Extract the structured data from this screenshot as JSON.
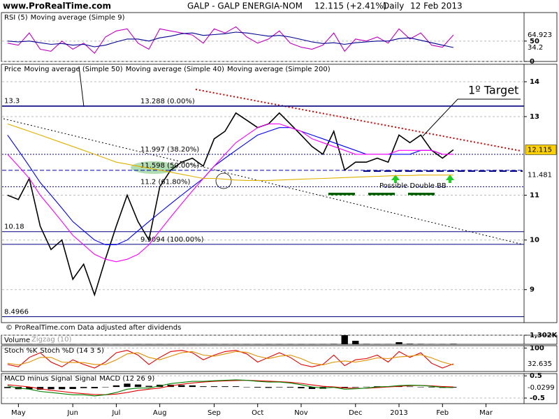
{
  "header": {
    "site": "www.ProRealTime.com",
    "ticker": "GALP - GALP ENERGIA-NOM",
    "last": "12.115 (+2.41%)",
    "period": "Daily",
    "date": "12 Feb 2013"
  },
  "chart_data": [
    {
      "type": "line",
      "ylim": [
        0,
        120
      ],
      "yticks": [
        0,
        50
      ],
      "series": [
        {
          "name": "RSI (5)",
          "color": "#c000c0",
          "values": [
            45,
            40,
            70,
            30,
            25,
            50,
            30,
            45,
            20,
            60,
            75,
            80,
            45,
            30,
            80,
            75,
            70,
            65,
            45,
            80,
            70,
            85,
            60,
            45,
            55,
            75,
            45,
            35,
            30,
            40,
            70,
            25,
            55,
            50,
            60,
            45,
            80,
            55,
            70,
            40,
            35,
            64.923,
            null,
            null,
            null,
            null,
            null,
            null
          ],
          "label_last": true
        },
        {
          "name": "Moving average (Simple 9)",
          "color": "#000090",
          "values": [
            50,
            48,
            50,
            46,
            42,
            44,
            40,
            42,
            36,
            40,
            48,
            55,
            55,
            50,
            58,
            62,
            68,
            70,
            64,
            66,
            68,
            72,
            70,
            66,
            62,
            64,
            60,
            54,
            48,
            44,
            46,
            42,
            46,
            48,
            50,
            50,
            56,
            58,
            52,
            46,
            40,
            34.2,
            null,
            null,
            null,
            null,
            null,
            null
          ],
          "label_last": true
        }
      ]
    },
    {
      "type": "line",
      "log": true,
      "ylim": [
        8.39,
        14.53
      ],
      "yticks": [
        9,
        10,
        11,
        13,
        14
      ],
      "series": [
        {
          "name": "Price",
          "color": "#000000",
          "values": [
            11.0,
            10.9,
            11.4,
            10.3,
            9.8,
            10.0,
            9.2,
            9.5,
            8.9,
            9.6,
            10.3,
            11.0,
            10.4,
            10.0,
            11.2,
            11.6,
            11.8,
            11.9,
            11.7,
            12.4,
            12.6,
            13.1,
            12.9,
            12.7,
            12.8,
            13.1,
            12.8,
            12.5,
            12.2,
            12.0,
            12.6,
            11.6,
            11.8,
            11.8,
            11.9,
            11.8,
            12.5,
            12.3,
            12.5,
            12.1,
            11.9,
            12.115,
            null,
            null,
            null,
            null,
            null,
            null
          ],
          "label_last": true
        },
        {
          "name": "Moving average (Simple 50)",
          "color": "#0000ff",
          "values": [
            12.5,
            12.1,
            11.7,
            11.3,
            11.0,
            10.7,
            10.4,
            10.2,
            10.0,
            9.9,
            9.9,
            10.0,
            10.2,
            10.4,
            10.6,
            10.8,
            11.0,
            11.2,
            11.4,
            11.7,
            11.9,
            12.1,
            12.3,
            12.5,
            12.6,
            12.7,
            12.7,
            12.6,
            12.5,
            12.4,
            12.3,
            12.2,
            12.1,
            12.0,
            12.0,
            12.0,
            12.0,
            12.0,
            12.1,
            12.1,
            12.0,
            12.0,
            null,
            null,
            null,
            null,
            null,
            null
          ]
        },
        {
          "name": "Moving average (Simple 40)",
          "color": "#ff00ff",
          "values": [
            12.0,
            11.7,
            11.4,
            11.0,
            10.7,
            10.4,
            10.1,
            9.9,
            9.7,
            9.6,
            9.55,
            9.6,
            9.7,
            9.9,
            10.2,
            10.5,
            10.8,
            11.1,
            11.4,
            11.7,
            12.0,
            12.3,
            12.5,
            12.7,
            12.8,
            12.8,
            12.7,
            12.6,
            12.4,
            12.3,
            12.2,
            12.1,
            12.0,
            12.0,
            12.0,
            12.0,
            12.1,
            12.1,
            12.1,
            12.1,
            12.0,
            12.0,
            null,
            null,
            null,
            null,
            null,
            null
          ]
        },
        {
          "name": "Moving average (Simple 200)",
          "color": "#e0b000",
          "values": [
            12.8,
            12.7,
            12.6,
            12.5,
            12.4,
            12.3,
            12.2,
            12.1,
            12.0,
            11.9,
            11.8,
            11.75,
            11.7,
            11.65,
            11.6,
            11.55,
            11.5,
            11.45,
            11.4,
            11.4,
            11.38,
            11.36,
            11.35,
            11.35,
            11.35,
            11.36,
            11.37,
            11.38,
            11.39,
            11.4,
            11.41,
            11.42,
            11.43,
            11.44,
            11.45,
            11.46,
            11.47,
            11.47,
            11.48,
            11.48,
            11.48,
            11.481,
            null,
            null,
            null,
            null,
            null,
            null
          ],
          "label_last": true
        }
      ],
      "levels": [
        {
          "value": 13.3,
          "label": "13.3",
          "color": "#000080",
          "style": "solid"
        },
        {
          "value": 13.288,
          "label": "13.288 (0.00%)",
          "color": "#000080",
          "style": "solid"
        },
        {
          "value": 11.997,
          "label": "11.997 (38.20%)",
          "color": "#0000c0",
          "style": "dotted"
        },
        {
          "value": 11.598,
          "label": "11.598 (50.00%)",
          "color": "#0000c0",
          "style": "dashed"
        },
        {
          "value": 11.2,
          "label": "11.2 (61.80%)",
          "color": "#0000c0",
          "style": "dotted"
        },
        {
          "value": 10.18,
          "label": "10.18",
          "color": "#000080",
          "style": "solid"
        },
        {
          "value": 9.9094,
          "label": "9.9094 (100.00%)",
          "color": "#000080",
          "style": "solid"
        },
        {
          "value": 8.4966,
          "label": "8.4966",
          "color": "#000080",
          "style": "solid"
        }
      ],
      "annotations": [
        "1º Target",
        "Possible Double BB",
        "© ProRealTime.com Data adjusted after dividends"
      ]
    },
    {
      "type": "bar",
      "ylim": [
        0,
        1302
      ],
      "yticks": [
        {
          "value": 1302,
          "label": "1,302K"
        }
      ],
      "series": [
        {
          "name": "Volume",
          "color": "#000000",
          "values": [
            40,
            30,
            50,
            35,
            30,
            40,
            30,
            35,
            45,
            40,
            30,
            35,
            30,
            30,
            40,
            35,
            30,
            30,
            35,
            40,
            35,
            30,
            35,
            30,
            30,
            35,
            40,
            35,
            30,
            40,
            60,
            1302,
            500,
            60,
            40,
            50,
            300,
            80,
            60,
            50,
            40,
            70,
            null,
            null,
            null,
            null,
            null,
            null
          ]
        }
      ],
      "annotations": [
        "Zigzag (10)"
      ]
    },
    {
      "type": "line",
      "ylim": [
        0,
        110
      ],
      "yticks": [
        100
      ],
      "series": [
        {
          "name": "Stoch %K",
          "color": "#e00000",
          "values": [
            30,
            20,
            60,
            80,
            40,
            20,
            50,
            30,
            15,
            40,
            80,
            90,
            70,
            30,
            60,
            85,
            90,
            80,
            50,
            70,
            85,
            90,
            75,
            40,
            60,
            80,
            60,
            30,
            20,
            30,
            70,
            25,
            50,
            55,
            70,
            40,
            85,
            60,
            80,
            35,
            15,
            32.635,
            null,
            null,
            null,
            null,
            null,
            null
          ],
          "label_last": true
        },
        {
          "name": "Stoch %D (14 3 5)",
          "color": "#e09000",
          "values": [
            35,
            28,
            40,
            60,
            60,
            40,
            38,
            38,
            30,
            30,
            50,
            75,
            80,
            60,
            50,
            65,
            80,
            85,
            70,
            65,
            75,
            85,
            82,
            65,
            55,
            65,
            70,
            55,
            35,
            28,
            40,
            45,
            40,
            48,
            58,
            55,
            62,
            65,
            72,
            58,
            40,
            28,
            null,
            null,
            null,
            null,
            null,
            null
          ]
        }
      ]
    },
    {
      "type": "line",
      "ylim": [
        -0.75,
        0.6
      ],
      "yticks": [
        0.5,
        -0.5
      ],
      "categories": [
        null,
        "May",
        null,
        null,
        null,
        null,
        "Jun",
        null,
        null,
        null,
        "Jul",
        null,
        null,
        null,
        "Aug",
        null,
        null,
        null,
        null,
        "Sep",
        null,
        null,
        null,
        "Oct",
        null,
        null,
        null,
        "Nov",
        null,
        null,
        null,
        null,
        "Dec",
        null,
        null,
        null,
        "2013",
        null,
        null,
        null,
        "Feb",
        null,
        null,
        null,
        "Mar",
        null,
        null,
        null
      ],
      "series": [
        {
          "name": "MACD minus Signal",
          "color": "#000000",
          "style": "bar",
          "values": [
            -0.05,
            -0.1,
            -0.1,
            -0.12,
            -0.1,
            -0.1,
            -0.09,
            -0.05,
            -0.06,
            0.0,
            0.07,
            0.15,
            0.11,
            0.05,
            0.1,
            0.1,
            0.08,
            0.07,
            0.03,
            0.03,
            0.03,
            0.03,
            0.0,
            -0.03,
            -0.04,
            -0.02,
            -0.03,
            -0.06,
            -0.09,
            -0.08,
            -0.02,
            -0.06,
            -0.02,
            0.01,
            0.03,
            0.02,
            0.03,
            0.02,
            0.0,
            -0.02,
            -0.04,
            -0.03,
            null,
            null,
            null,
            null,
            null,
            null
          ]
        },
        {
          "name": "Signal",
          "color": "#e00000",
          "values": [
            0.1,
            0.05,
            0.0,
            -0.08,
            -0.15,
            -0.2,
            -0.26,
            -0.3,
            -0.34,
            -0.35,
            -0.32,
            -0.25,
            -0.16,
            -0.1,
            -0.05,
            0.05,
            0.12,
            0.18,
            0.22,
            0.25,
            0.27,
            0.29,
            0.3,
            0.28,
            0.26,
            0.24,
            0.21,
            0.16,
            0.09,
            0.03,
            0.0,
            -0.04,
            -0.06,
            -0.06,
            -0.03,
            0.0,
            0.03,
            0.06,
            0.07,
            0.05,
            0.02,
            0.0,
            null,
            null,
            null,
            null,
            null,
            null
          ]
        },
        {
          "name": "MACD (12 26 9)",
          "color": "#008000",
          "values": [
            0.05,
            -0.05,
            -0.1,
            -0.2,
            -0.25,
            -0.3,
            -0.35,
            -0.35,
            -0.4,
            -0.35,
            -0.25,
            -0.1,
            -0.05,
            -0.05,
            0.05,
            0.15,
            0.2,
            0.25,
            0.25,
            0.28,
            0.3,
            0.32,
            0.3,
            0.25,
            0.22,
            0.22,
            0.18,
            0.1,
            0.0,
            -0.05,
            -0.02,
            -0.1,
            -0.08,
            -0.05,
            0.0,
            0.02,
            0.06,
            0.08,
            0.07,
            0.03,
            -0.02,
            -0.0299,
            null,
            null,
            null,
            null,
            null,
            null
          ],
          "label_last": true
        }
      ]
    }
  ]
}
